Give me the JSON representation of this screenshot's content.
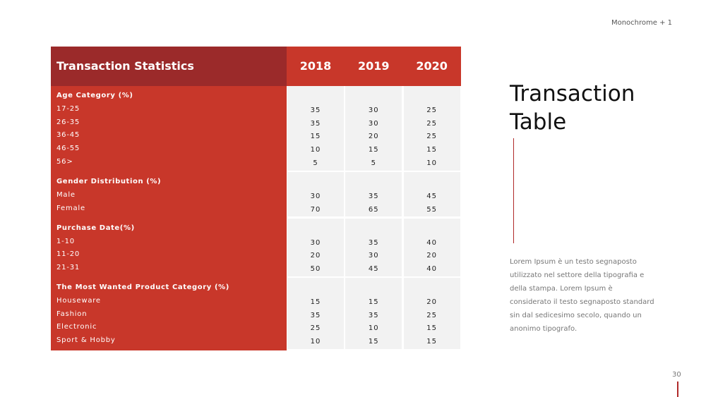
{
  "header_tag": "Monochrome + 1",
  "table": {
    "title": "Transaction Statistics",
    "years": [
      "2018",
      "2019",
      "2020"
    ],
    "sections": [
      {
        "heading": "Age Category (%)",
        "rows": [
          {
            "label": "17-25",
            "values": [
              35,
              30,
              25
            ]
          },
          {
            "label": "26-35",
            "values": [
              35,
              30,
              25
            ]
          },
          {
            "label": "36-45",
            "values": [
              15,
              20,
              25
            ]
          },
          {
            "label": "46-55",
            "values": [
              10,
              15,
              15
            ]
          },
          {
            "label": "56>",
            "values": [
              5,
              5,
              10
            ]
          }
        ]
      },
      {
        "heading": "Gender Distribution (%)",
        "rows": [
          {
            "label": "Male",
            "values": [
              30,
              35,
              45
            ]
          },
          {
            "label": "Female",
            "values": [
              70,
              65,
              55
            ]
          }
        ]
      },
      {
        "heading": "Purchase Date(%)",
        "rows": [
          {
            "label": "1-10",
            "values": [
              30,
              35,
              40
            ]
          },
          {
            "label": "11-20",
            "values": [
              20,
              30,
              20
            ]
          },
          {
            "label": "21-31",
            "values": [
              50,
              45,
              40
            ]
          }
        ]
      },
      {
        "heading": "The Most Wanted Product Category (%)",
        "rows": [
          {
            "label": "Houseware",
            "values": [
              15,
              15,
              20
            ]
          },
          {
            "label": "Fashion",
            "values": [
              35,
              35,
              25
            ]
          },
          {
            "label": "Electronic",
            "values": [
              25,
              10,
              15
            ]
          },
          {
            "label": "Sport & Hobby",
            "values": [
              10,
              15,
              15
            ]
          }
        ]
      }
    ]
  },
  "side": {
    "title": "Transaction Table",
    "body": "Lorem Ipsum è un testo segnaposto utilizzato nel settore della tipografia e della stampa. Lorem Ipsum è considerato il testo segnaposto standard sin dal sedicesimo secolo, quando un anonimo tipografo."
  },
  "page_number": "30"
}
